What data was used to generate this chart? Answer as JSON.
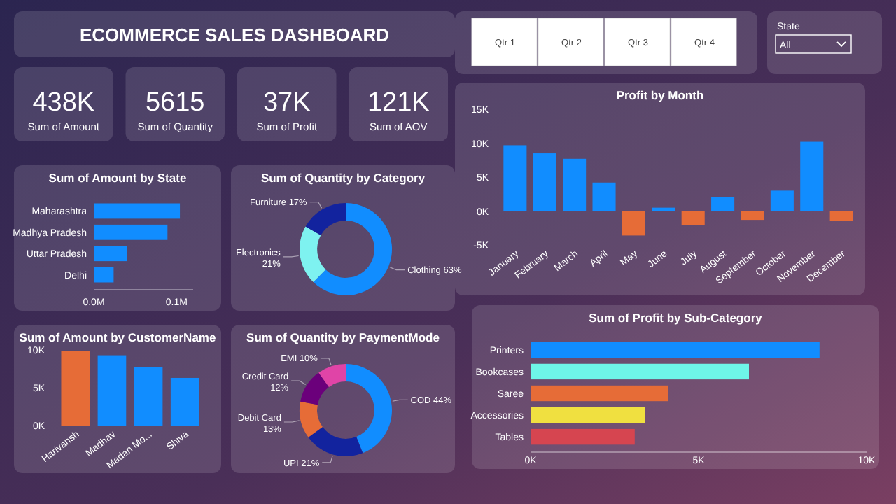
{
  "chart_data": [
    {
      "type": "other",
      "title": "ECOMMERCE SALES DASHBOARD"
    },
    {
      "type": "other",
      "categories": [
        "Qtr 1",
        "Qtr 2",
        "Qtr 3",
        "Qtr 4"
      ]
    },
    {
      "type": "other",
      "title": "State",
      "annotations": [
        "All"
      ]
    },
    {
      "type": "other",
      "categories": [
        "Sum of Amount",
        "Sum of Quantity",
        "Sum of Profit",
        "Sum of AOV"
      ],
      "value_labels": [
        "438K",
        "5615",
        "37K",
        "121K"
      ]
    },
    {
      "type": "bar",
      "title": "Profit by Month",
      "categories": [
        "January",
        "February",
        "March",
        "April",
        "May",
        "June",
        "July",
        "August",
        "September",
        "October",
        "November",
        "December"
      ],
      "values": [
        9700,
        8500,
        7700,
        4200,
        -3600,
        500,
        -2100,
        2100,
        -1300,
        3000,
        10200,
        -1400
      ],
      "colors": [
        "#118dff",
        "#118dff",
        "#118dff",
        "#118dff",
        "#e66c37",
        "#118dff",
        "#e66c37",
        "#118dff",
        "#e66c37",
        "#118dff",
        "#118dff",
        "#e66c37"
      ],
      "ylim": [
        -5000,
        15000
      ],
      "yticks": [
        {
          "value": -5000,
          "label": "-5K"
        },
        {
          "value": 0,
          "label": "0K"
        },
        {
          "value": 5000,
          "label": "5K"
        },
        {
          "value": 10000,
          "label": "10K"
        },
        {
          "value": 15000,
          "label": "15K"
        }
      ]
    },
    {
      "type": "bar",
      "title": "Sum of Amount by State",
      "orientation": "horizontal",
      "categories": [
        "Maharashtra",
        "Madhya Pradesh",
        "Uttar Pradesh",
        "Delhi"
      ],
      "values": [
        0.104,
        0.089,
        0.04,
        0.024
      ],
      "color": "#118dff",
      "xlim": [
        0,
        0.12
      ],
      "xticks": [
        {
          "value": 0,
          "label": "0.0M"
        },
        {
          "value": 0.1,
          "label": "0.1M"
        }
      ]
    },
    {
      "type": "donut",
      "title": "Sum of Quantity by Category",
      "categories": [
        "Clothing",
        "Electronics",
        "Furniture"
      ],
      "values": [
        63,
        21,
        17
      ],
      "value_labels": [
        "63%",
        "21%",
        "17%"
      ],
      "colors": [
        "#118dff",
        "#7ef2f0",
        "#12239e"
      ]
    },
    {
      "type": "bar",
      "title": "Sum of Amount by CustomerName",
      "categories": [
        "Harivansh",
        "Madhav",
        "Madan Mo...",
        "Shiva"
      ],
      "values": [
        9900,
        9300,
        7700,
        6300
      ],
      "colors": [
        "#e66c37",
        "#118dff",
        "#118dff",
        "#118dff"
      ],
      "ylim": [
        0,
        10000
      ],
      "yticks": [
        {
          "value": 0,
          "label": "0K"
        },
        {
          "value": 5000,
          "label": "5K"
        },
        {
          "value": 10000,
          "label": "10K"
        }
      ]
    },
    {
      "type": "donut",
      "title": "Sum of Quantity by PaymentMode",
      "categories": [
        "COD",
        "UPI",
        "Debit Card",
        "Credit Card",
        "EMI"
      ],
      "values": [
        44,
        21,
        13,
        12,
        10
      ],
      "value_labels": [
        "44%",
        "21%",
        "13%",
        "12%",
        "10%"
      ],
      "colors": [
        "#118dff",
        "#12239e",
        "#e66c37",
        "#6b007b",
        "#e044a7"
      ]
    },
    {
      "type": "bar",
      "title": "Sum of Profit by Sub-Category",
      "orientation": "horizontal",
      "categories": [
        "Printers",
        "Bookcases",
        "Saree",
        "Accessories",
        "Tables"
      ],
      "values": [
        8600,
        6500,
        4100,
        3400,
        3100
      ],
      "colors": [
        "#118dff",
        "#6ef5e8",
        "#e66c37",
        "#f0e040",
        "#d64550"
      ],
      "xlim": [
        0,
        10000
      ],
      "xticks": [
        {
          "value": 0,
          "label": "0K"
        },
        {
          "value": 5000,
          "label": "5K"
        },
        {
          "value": 10000,
          "label": "10K"
        }
      ]
    }
  ]
}
